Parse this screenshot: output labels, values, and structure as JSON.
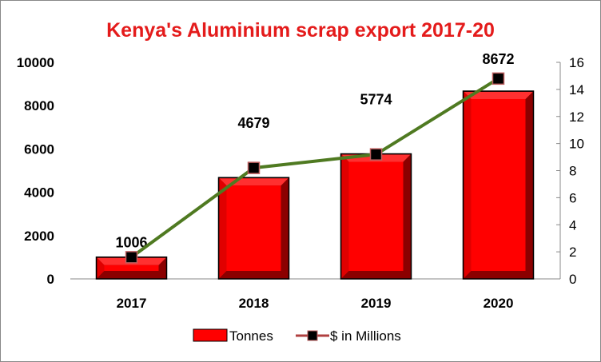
{
  "chart_data": {
    "type": "bar+line",
    "title": "Kenya's Aluminium scrap export 2017-20",
    "categories": [
      "2017",
      "2018",
      "2019",
      "2020"
    ],
    "series": [
      {
        "name": "Tonnes",
        "type": "bar",
        "axis": "left",
        "values": [
          1006,
          4679,
          5774,
          8672
        ],
        "data_labels": [
          "1006",
          "4679",
          "5774",
          "8672"
        ]
      },
      {
        "name": "$ in Millions",
        "type": "line",
        "axis": "right",
        "values": [
          1.6,
          8.2,
          9.2,
          14.8
        ]
      }
    ],
    "y_left": {
      "min": 0,
      "max": 10000,
      "ticks": [
        "0",
        "2000",
        "4000",
        "6000",
        "8000",
        "10000"
      ]
    },
    "y_right": {
      "min": 0,
      "max": 16,
      "ticks": [
        "0",
        "2",
        "4",
        "6",
        "8",
        "10",
        "12",
        "14",
        "16"
      ]
    },
    "legend": {
      "position": "bottom"
    },
    "grid": false,
    "colors": {
      "title": "#e41b1b",
      "bar": "#ff0000",
      "bar_dark": "#8b0000",
      "line": "#4f7a21",
      "marker": "#000000",
      "marker_edge": "#c06060"
    }
  }
}
